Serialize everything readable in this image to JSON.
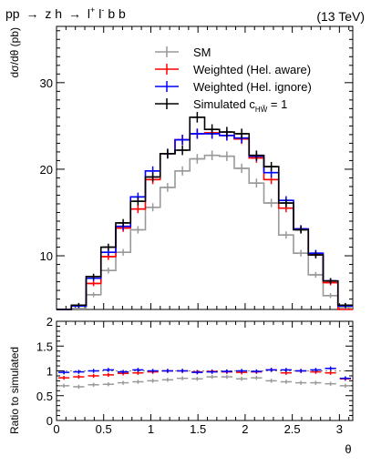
{
  "header": {
    "process_parts": [
      "pp",
      "→",
      "z h",
      "→",
      "l",
      "+",
      "l",
      "-",
      "b b"
    ],
    "energy": "(13 TeV)"
  },
  "chart_data": [
    {
      "type": "line",
      "style": "step-histogram-with-errorbars",
      "ylabel": "dσ/dθ (pb)",
      "xlim": [
        0,
        3.14159
      ],
      "ylim": [
        3.8,
        36.5
      ],
      "xticks": [
        0,
        0.5,
        1,
        1.5,
        2,
        2.5,
        3
      ],
      "yticks": [
        10,
        20,
        30
      ],
      "ytick_labels": [
        "10",
        "20",
        "30"
      ],
      "bin_edges": [
        0,
        0.15708,
        0.31416,
        0.47124,
        0.62832,
        0.7854,
        0.94248,
        1.09956,
        1.25664,
        1.41372,
        1.5708,
        1.72788,
        1.88496,
        2.04204,
        2.19911,
        2.35619,
        2.51327,
        2.67035,
        2.82743,
        2.98451,
        3.14159
      ],
      "legend": {
        "placement": "top-right",
        "entries": [
          "SM",
          "Weighted (Hel. aware)",
          "Weighted (Hel. ignore)",
          "Simulated  c"
        ],
        "simulated_sub": "HW̃",
        "simulated_eq": " = 1"
      },
      "series": [
        {
          "name": "SM",
          "color": "#999999",
          "values": [
            3.0,
            3.9,
            5.5,
            8.3,
            10.4,
            13.0,
            15.6,
            17.9,
            19.8,
            21.2,
            21.6,
            21.5,
            20.1,
            18.4,
            16.1,
            12.4,
            10.3,
            7.8,
            5.4,
            4.0
          ]
        },
        {
          "name": "Weighted (Hel. aware)",
          "color": "#ff0000",
          "values": [
            3.2,
            4.2,
            6.8,
            9.9,
            13.2,
            15.4,
            18.8,
            21.8,
            23.4,
            24.1,
            24.2,
            23.9,
            23.5,
            21.3,
            18.8,
            15.5,
            13.1,
            10.1,
            6.9,
            3.6
          ]
        },
        {
          "name": "Weighted (Hel. ignore)",
          "color": "#0000ff",
          "values": [
            3.1,
            4.2,
            7.4,
            10.4,
            13.4,
            16.8,
            19.8,
            21.8,
            23.4,
            24.1,
            24.1,
            23.9,
            23.6,
            21.5,
            19.6,
            16.4,
            13.1,
            10.3,
            7.1,
            4.2
          ]
        },
        {
          "name": "Simulated",
          "color": "#000000",
          "values": [
            3.3,
            4.3,
            7.6,
            11.0,
            13.8,
            16.3,
            19.1,
            21.8,
            22.2,
            26.0,
            24.6,
            24.3,
            24.1,
            21.6,
            20.3,
            16.1,
            13.0,
            10.1,
            7.1,
            4.3
          ]
        }
      ]
    },
    {
      "type": "line",
      "style": "ratio-markers",
      "ylabel": "Ratio to simulated",
      "xlabel": "θ",
      "xlim": [
        0,
        3.14159
      ],
      "ylim": [
        0,
        2
      ],
      "xticks": [
        0,
        0.5,
        1,
        1.5,
        2,
        2.5,
        3
      ],
      "xtick_labels": [
        "0",
        "0.5",
        "1",
        "1.5",
        "2",
        "2.5",
        "3"
      ],
      "yticks": [
        0,
        0.5,
        1,
        1.5,
        2
      ],
      "ytick_labels": [
        "0",
        "0.5",
        "1",
        "1.5",
        "2"
      ],
      "series": [
        {
          "name": "SM",
          "color": "#999999",
          "values": [
            0.7,
            0.68,
            0.72,
            0.73,
            0.76,
            0.78,
            0.8,
            0.82,
            0.85,
            0.84,
            0.88,
            0.88,
            0.84,
            0.86,
            0.8,
            0.78,
            0.76,
            0.76,
            0.74,
            0.7
          ]
        },
        {
          "name": "Weighted (Hel. aware)",
          "color": "#ff0000",
          "values": [
            0.86,
            0.88,
            0.9,
            0.92,
            0.95,
            0.96,
            0.98,
            1.0,
            1.0,
            0.98,
            0.99,
            0.98,
            0.97,
            0.98,
            1.02,
            0.96,
            1.0,
            0.98,
            0.96,
            0.84
          ]
        },
        {
          "name": "Weighted (Hel. ignore)",
          "color": "#0000ff",
          "values": [
            0.97,
            0.98,
            1.0,
            1.02,
            0.98,
            1.02,
            1.0,
            1.0,
            1.0,
            0.97,
            0.98,
            0.99,
            1.0,
            0.99,
            1.02,
            1.02,
            1.0,
            1.02,
            1.05,
            0.85
          ]
        },
        {
          "name": "Simulated",
          "color": "#000000",
          "values": [
            1,
            1,
            1,
            1,
            1,
            1,
            1,
            1,
            1,
            1,
            1,
            1,
            1,
            1,
            1,
            1,
            1,
            1,
            1,
            1
          ]
        }
      ]
    }
  ]
}
